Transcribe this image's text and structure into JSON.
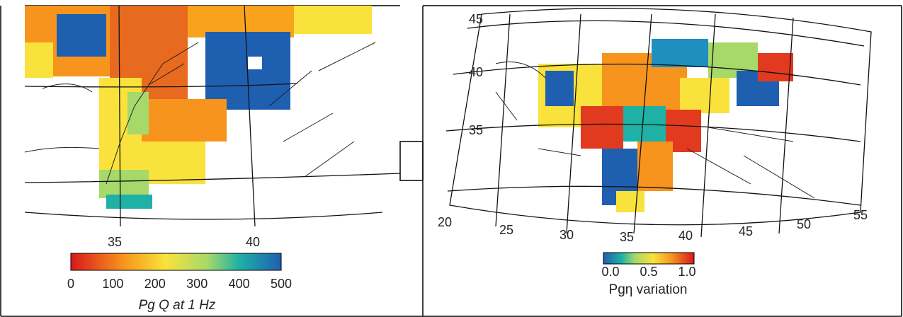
{
  "left_panel": {
    "longitude_labels": [
      "35",
      "40"
    ],
    "colorbar_ticks": [
      "0",
      "100",
      "200",
      "300",
      "400",
      "500"
    ],
    "colorbar_label": "Pg Q at 1 Hz"
  },
  "right_panel": {
    "latitude_labels": [
      "45",
      "40",
      "35"
    ],
    "longitude_labels": [
      "20",
      "25",
      "30",
      "35",
      "40",
      "45",
      "50",
      "55"
    ],
    "colorbar_ticks": [
      "0.0",
      "0.5",
      "1.0"
    ],
    "colorbar_label": "Pgη variation"
  }
}
